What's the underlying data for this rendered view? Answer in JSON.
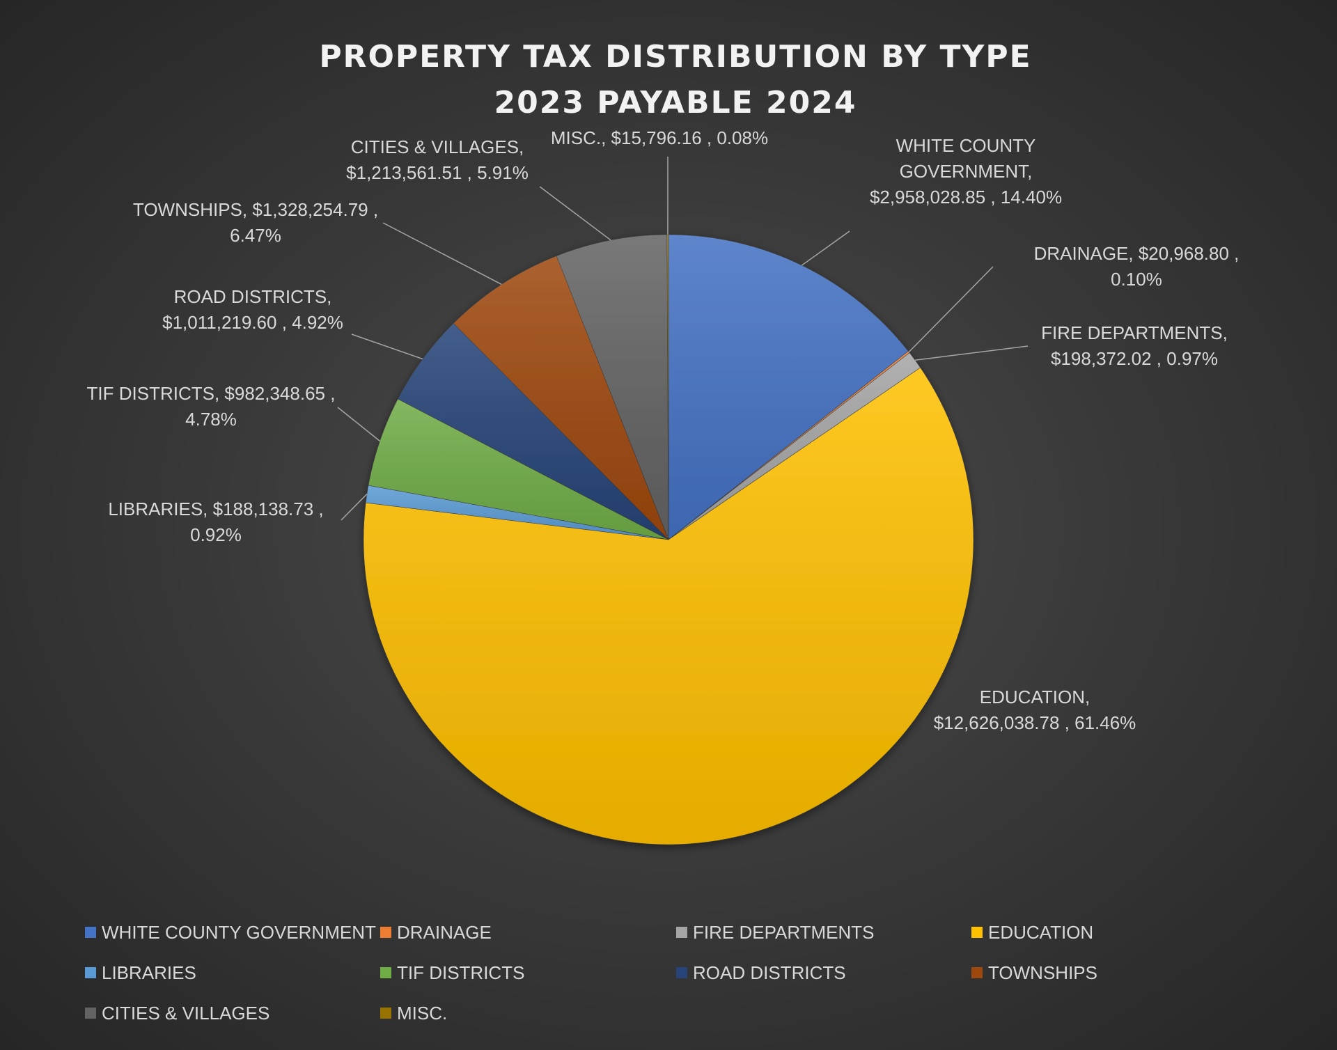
{
  "chart_data": {
    "type": "pie",
    "title_lines": [
      "PROPERTY TAX DISTRIBUTION BY TYPE",
      "2023 PAYABLE 2024"
    ],
    "slices": [
      {
        "category": "WHITE COUNTY GOVERNMENT",
        "label_lines": [
          "WHITE COUNTY",
          "GOVERNMENT,",
          "$2,958,028.85 , 14.40%"
        ],
        "value": 2958028.85,
        "percent": 14.4,
        "color": "#4472C4"
      },
      {
        "category": "DRAINAGE",
        "label_lines": [
          "DRAINAGE,  $20,968.80 ,",
          "0.10%"
        ],
        "value": 20968.8,
        "percent": 0.1,
        "color": "#ED7D31"
      },
      {
        "category": "FIRE DEPARTMENTS",
        "label_lines": [
          "FIRE DEPARTMENTS,",
          "$198,372.02 , 0.97%"
        ],
        "value": 198372.02,
        "percent": 0.97,
        "color": "#A5A5A5"
      },
      {
        "category": "EDUCATION",
        "label_lines": [
          "EDUCATION,",
          "$12,626,038.78 , 61.46%"
        ],
        "value": 12626038.78,
        "percent": 61.46,
        "color": "#FFC000"
      },
      {
        "category": "LIBRARIES",
        "label_lines": [
          "LIBRARIES,  $188,138.73 ,",
          "0.92%"
        ],
        "value": 188138.73,
        "percent": 0.92,
        "color": "#5B9BD5"
      },
      {
        "category": "TIF DISTRICTS",
        "label_lines": [
          "TIF DISTRICTS,  $982,348.65 ,",
          "4.78%"
        ],
        "value": 982348.65,
        "percent": 4.78,
        "color": "#70AD47"
      },
      {
        "category": "ROAD DISTRICTS",
        "label_lines": [
          "ROAD DISTRICTS,",
          "$1,011,219.60 , 4.92%"
        ],
        "value": 1011219.6,
        "percent": 4.92,
        "color": "#264478"
      },
      {
        "category": "TOWNSHIPS",
        "label_lines": [
          "TOWNSHIPS,  $1,328,254.79 ,",
          "6.47%"
        ],
        "value": 1328254.79,
        "percent": 6.47,
        "color": "#9E480E"
      },
      {
        "category": "CITIES & VILLAGES",
        "label_lines": [
          "CITIES & VILLAGES,",
          "$1,213,561.51 , 5.91%"
        ],
        "value": 1213561.51,
        "percent": 5.91,
        "color": "#636363"
      },
      {
        "category": "MISC.",
        "label_lines": [
          "MISC.,  $15,796.16 , 0.08%"
        ],
        "value": 15796.16,
        "percent": 0.08,
        "color": "#997300"
      }
    ],
    "legend_position": "bottom"
  }
}
